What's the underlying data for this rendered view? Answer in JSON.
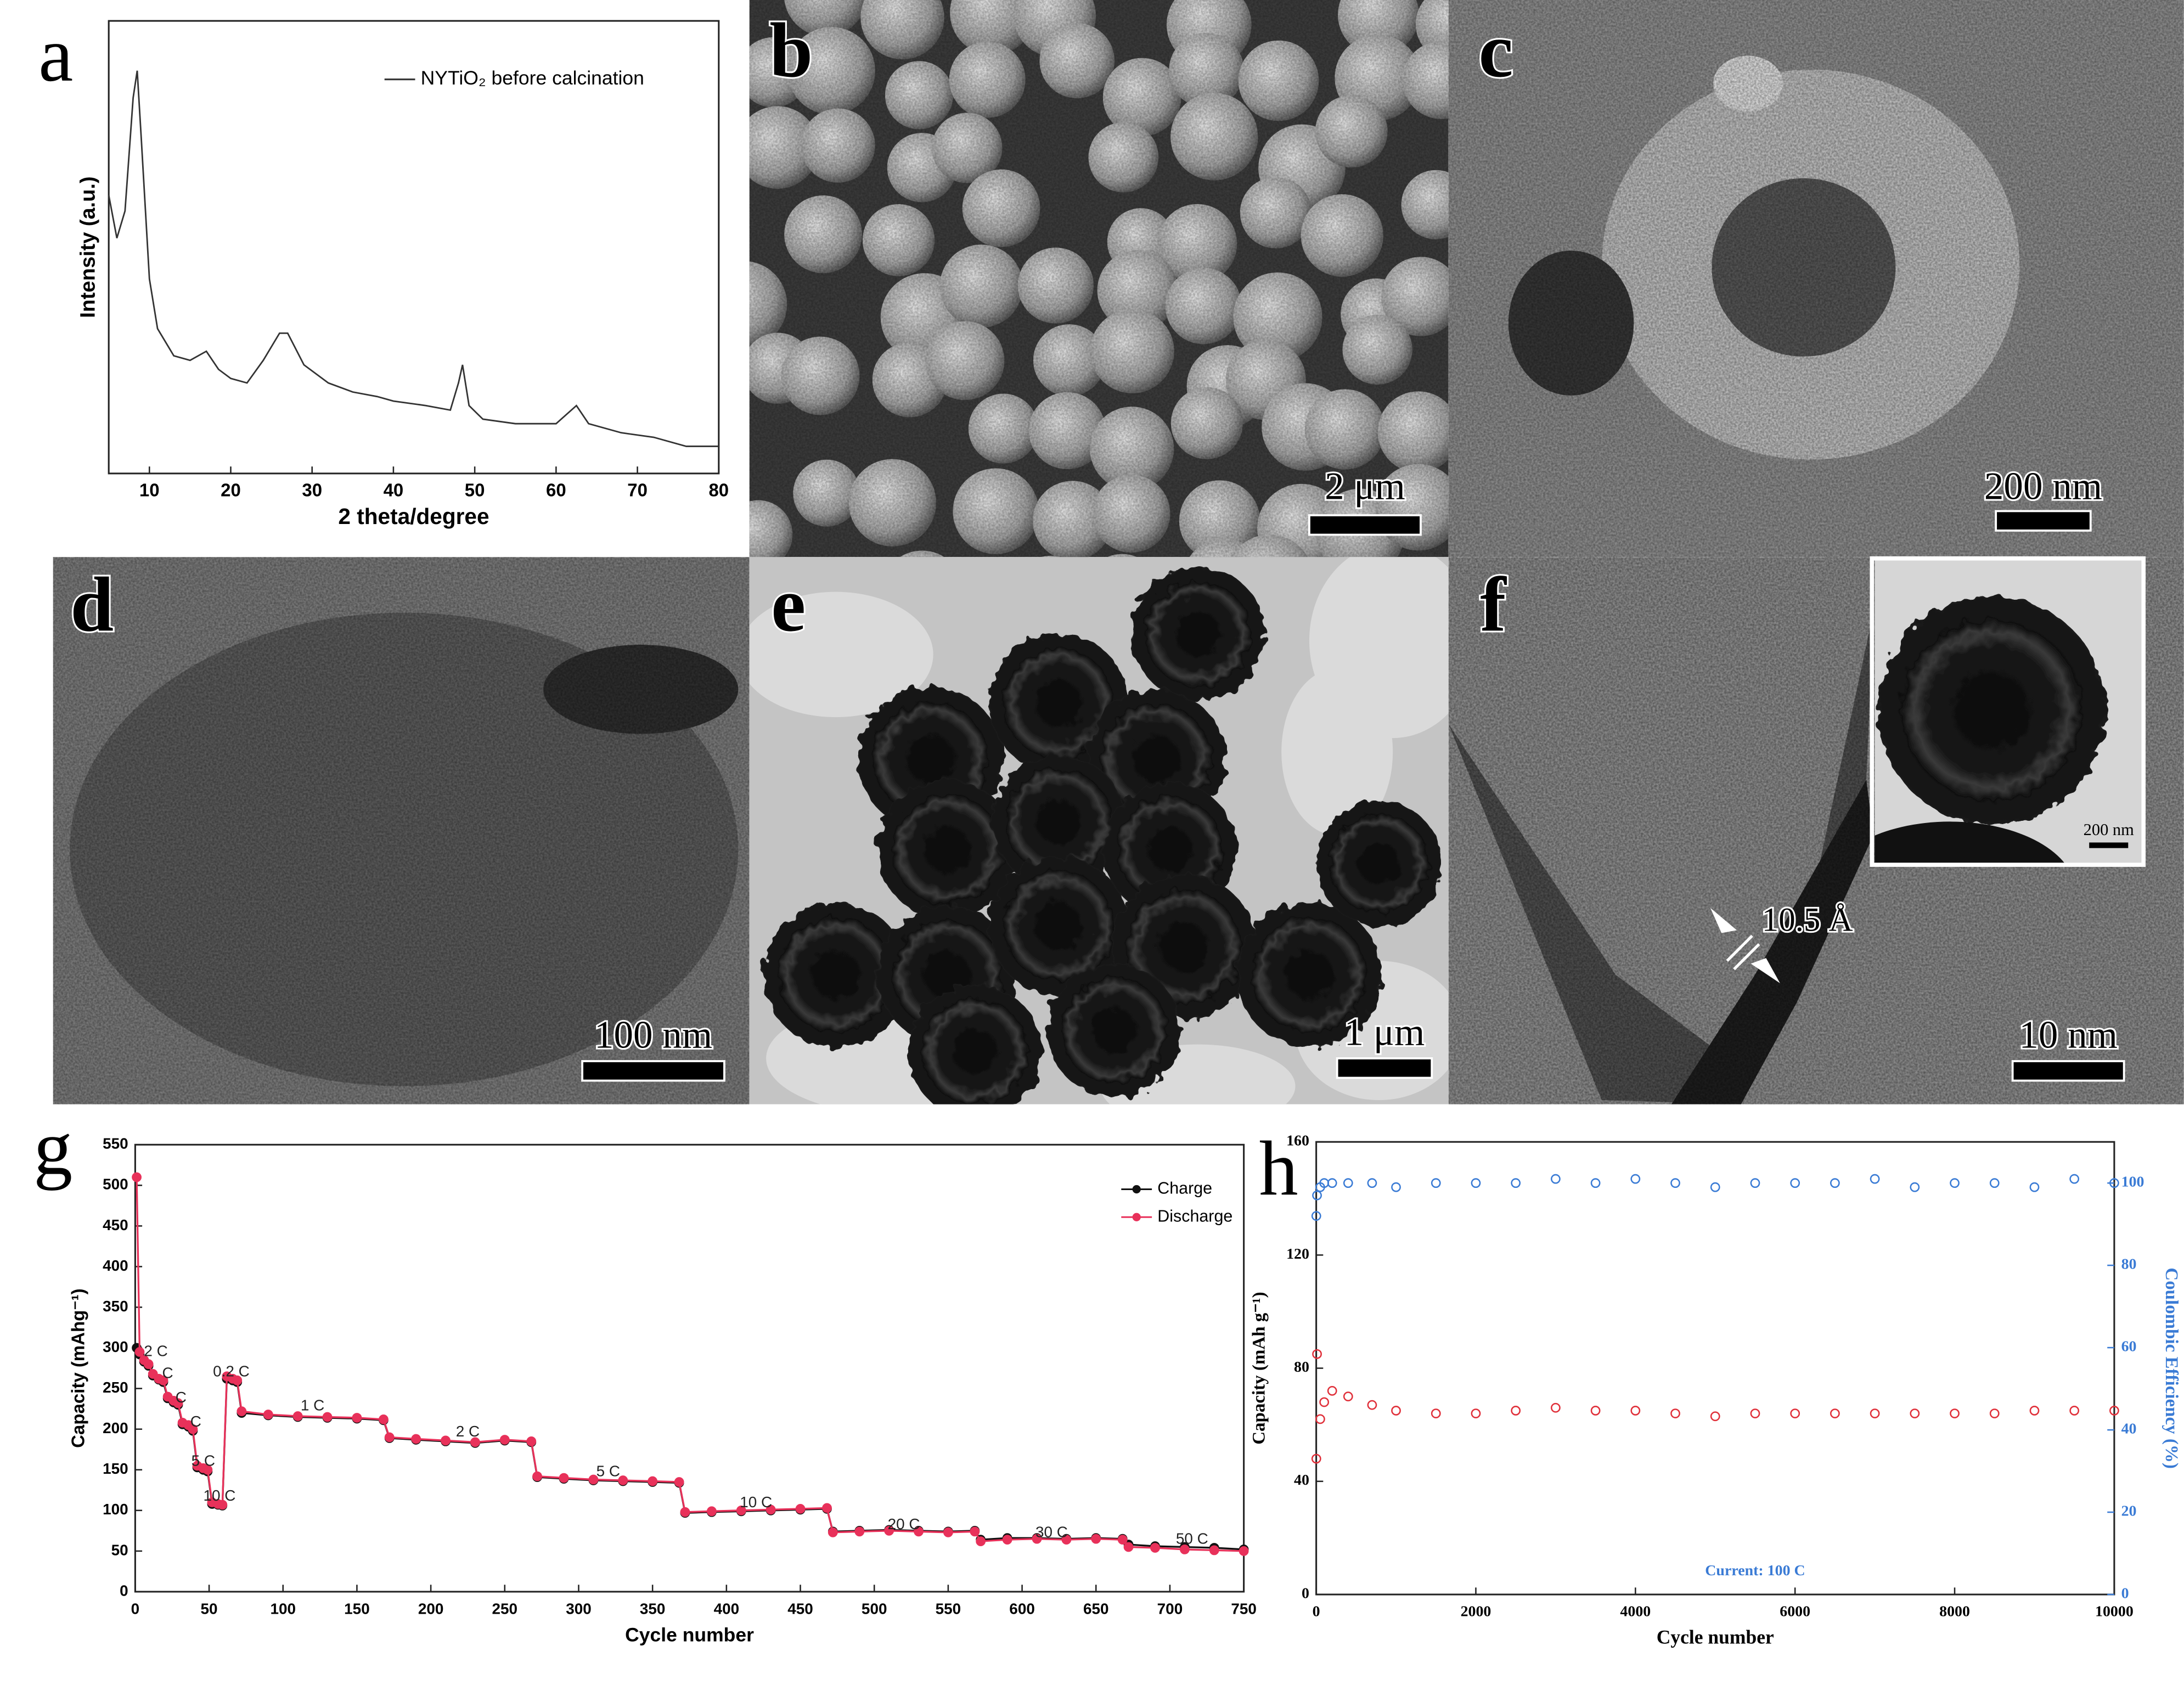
{
  "chart_data": [
    {
      "type": "line",
      "panel": "a",
      "xlabel": "2 theta/degree",
      "ylabel": "Intensity (a.u.)",
      "legend": "upper right",
      "font": "sans",
      "markers": "none",
      "xlim": [
        5,
        80
      ],
      "xticks": [
        10,
        20,
        30,
        40,
        50,
        60,
        70,
        80
      ],
      "ylim": [
        0,
        100
      ],
      "x": [
        5,
        6,
        7,
        8,
        8.5,
        9,
        10,
        11,
        13,
        15,
        17,
        18.5,
        20,
        22,
        24,
        26,
        27,
        29,
        32,
        35,
        38,
        40,
        44,
        47,
        48,
        48.5,
        49.3,
        51,
        55,
        60,
        62.5,
        64,
        68,
        72,
        76,
        80
      ],
      "series": [
        {
          "name": "NYTiO₂ before calcination",
          "color": "#333333",
          "values": [
            61.5,
            52,
            58,
            83,
            89,
            74,
            43,
            32,
            26,
            25,
            27,
            23,
            21,
            20,
            25,
            31,
            31,
            24,
            20,
            18,
            17,
            16,
            15,
            14,
            20,
            24,
            15,
            12,
            11,
            11,
            15,
            11,
            9,
            8,
            6,
            6
          ]
        }
      ]
    },
    {
      "type": "line",
      "panel": "g",
      "xlabel": "Cycle number",
      "ylabel": "Capacity (mAhg⁻¹)",
      "legend": "upper right",
      "font": "sans",
      "markers": "filled",
      "xlim": [
        0,
        750
      ],
      "xticks": [
        0,
        50,
        100,
        150,
        200,
        250,
        300,
        350,
        400,
        450,
        500,
        550,
        600,
        650,
        700,
        750
      ],
      "ylim": [
        0,
        550
      ],
      "yticks": [
        0,
        50,
        100,
        150,
        200,
        250,
        300,
        350,
        400,
        450,
        500,
        550
      ],
      "x": [
        1,
        3,
        6,
        9,
        12,
        16,
        19,
        22,
        26,
        29,
        32,
        36,
        39,
        42,
        46,
        49,
        52,
        56,
        59,
        62,
        66,
        69,
        72,
        90,
        110,
        130,
        150,
        168,
        172,
        190,
        210,
        230,
        250,
        268,
        272,
        290,
        310,
        330,
        350,
        368,
        372,
        390,
        410,
        430,
        450,
        468,
        472,
        490,
        510,
        530,
        550,
        568,
        572,
        590,
        610,
        630,
        650,
        668,
        672,
        690,
        710,
        730,
        750
      ],
      "series": [
        {
          "name": "Charge",
          "color": "#111111",
          "values": [
            300,
            292,
            283,
            278,
            266,
            261,
            258,
            238,
            233,
            230,
            206,
            203,
            198,
            153,
            150,
            148,
            108,
            107,
            106,
            262,
            260,
            258,
            220,
            217,
            215,
            214,
            213,
            211,
            189,
            187,
            185,
            183,
            186,
            184,
            141,
            139,
            137,
            136,
            135,
            134,
            97,
            98,
            99,
            100,
            101,
            102,
            74,
            75,
            76,
            75,
            74,
            75,
            64,
            66,
            66,
            65,
            66,
            65,
            58,
            56,
            55,
            54,
            52
          ]
        },
        {
          "name": "Discharge",
          "color": "#e8315a",
          "values": [
            510,
            295,
            285,
            280,
            268,
            262,
            260,
            240,
            235,
            232,
            208,
            205,
            200,
            155,
            152,
            150,
            110,
            108,
            107,
            265,
            262,
            260,
            222,
            218,
            216,
            215,
            214,
            212,
            190,
            188,
            186,
            184,
            187,
            185,
            142,
            140,
            138,
            137,
            136,
            135,
            98,
            99,
            100,
            101,
            102,
            103,
            73,
            74,
            75,
            74,
            73,
            74,
            62,
            64,
            65,
            64,
            65,
            64,
            55,
            54,
            52,
            51,
            50
          ]
        }
      ],
      "annotations": [
        "2 C",
        "C",
        "C",
        "C",
        "5 C",
        "10 C",
        "0.2 C",
        "1 C",
        "2 C",
        "5 C",
        "10 C",
        "20 C",
        "30 C",
        "50 C"
      ]
    },
    {
      "type": "line",
      "panel": "h",
      "xlabel": "Cycle number",
      "ylabel": "Capacity (mAh g⁻¹)",
      "y2label": "Coulombic Efficiency (%)",
      "font": "serif",
      "markers": "hollow",
      "xlim": [
        0,
        10000
      ],
      "xticks": [
        0,
        2000,
        4000,
        6000,
        8000,
        10000
      ],
      "ylim": [
        0,
        160
      ],
      "yticks": [
        0,
        40,
        80,
        120,
        160
      ],
      "y2lim": [
        0,
        110
      ],
      "y2ticks": [
        0,
        20,
        40,
        60,
        80,
        100
      ],
      "x": [
        1,
        10,
        50,
        100,
        200,
        400,
        700,
        1000,
        1500,
        2000,
        2500,
        3000,
        3500,
        4000,
        4500,
        5000,
        5500,
        6000,
        6500,
        7000,
        7500,
        8000,
        8500,
        9000,
        9500,
        10000
      ],
      "series": [
        {
          "color": "#e0303a",
          "values": [
            48,
            85,
            62,
            68,
            72,
            70,
            67,
            65,
            64,
            64,
            65,
            66,
            65,
            65,
            64,
            63,
            64,
            64,
            64,
            64,
            64,
            64,
            64,
            65,
            65,
            65
          ]
        },
        {
          "color": "#3a7bd5",
          "axis": "y2",
          "values": [
            92,
            97,
            99,
            100,
            100,
            100,
            100,
            99,
            100,
            100,
            100,
            101,
            100,
            101,
            100,
            99,
            100,
            100,
            100,
            101,
            99,
            100,
            100,
            99,
            101,
            100
          ]
        }
      ],
      "annotations": [
        "Current: 100 C"
      ]
    }
  ],
  "micrographs": [
    {
      "panel": "b",
      "scale_bar": "2 μm"
    },
    {
      "panel": "c",
      "scale_bar": "200 nm"
    },
    {
      "panel": "d",
      "scale_bar": "100 nm"
    },
    {
      "panel": "e",
      "scale_bar": "1 μm"
    },
    {
      "panel": "f",
      "scale_bar": "10 nm",
      "inset_scale_bar": "200 nm",
      "spacing_label": "10.5 Å"
    }
  ]
}
